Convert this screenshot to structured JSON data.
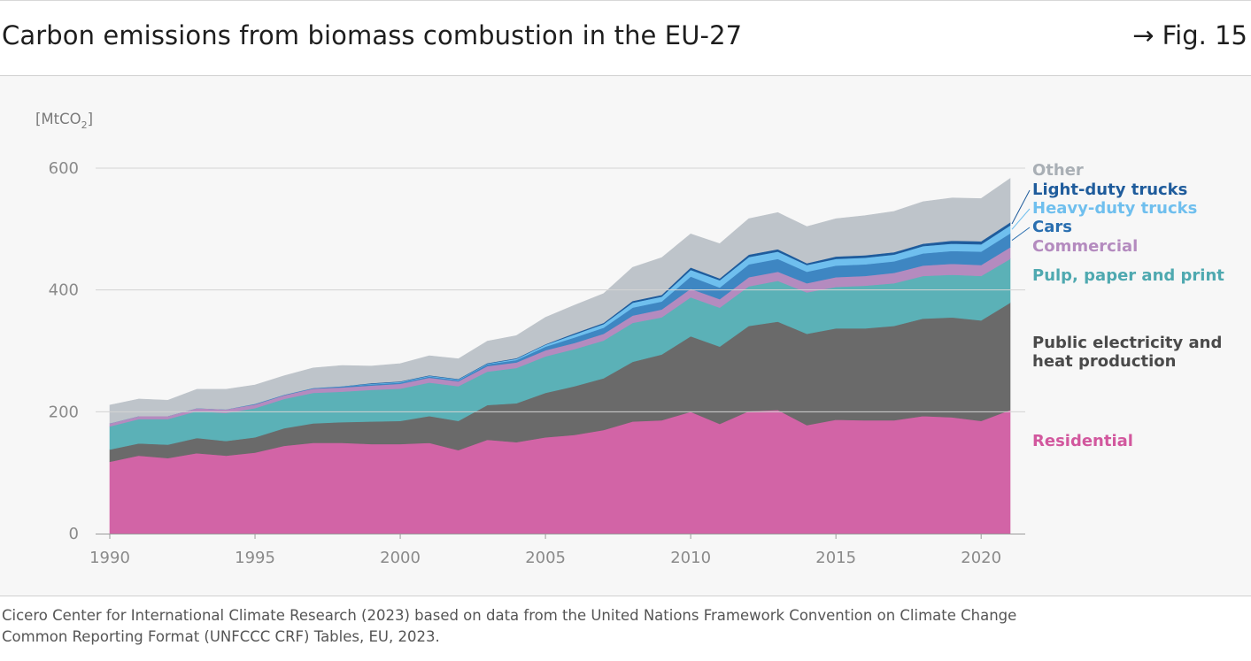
{
  "header": {
    "title": "Carbon emissions from biomass combustion in the EU-27",
    "figure_ref": "→ Fig. 15"
  },
  "source": {
    "line1": "Cicero Center for International Climate Research (2023) based on data from the United Nations Framework Convention on Climate Change",
    "line2": "Common Reporting Format (UNFCCC CRF) Tables, EU, 2023."
  },
  "chart_data": {
    "type": "area",
    "stacked": true,
    "title": "Carbon emissions from biomass combustion in the EU-27",
    "ylabel": "[MtCO2]",
    "ylabel_main": "[MtCO",
    "ylabel_sub": "2",
    "ylabel_end": "]",
    "ylim": [
      0,
      620
    ],
    "y_ticks": [
      0,
      200,
      400,
      600
    ],
    "x_ticks": [
      1990,
      1995,
      2000,
      2005,
      2010,
      2015,
      2020
    ],
    "grid": "horizontal",
    "legend_placement": "right",
    "x": [
      1990,
      1991,
      1992,
      1993,
      1994,
      1995,
      1996,
      1997,
      1998,
      1999,
      2000,
      2001,
      2002,
      2003,
      2004,
      2005,
      2006,
      2007,
      2008,
      2009,
      2010,
      2011,
      2012,
      2013,
      2014,
      2015,
      2016,
      2017,
      2018,
      2019,
      2020,
      2021
    ],
    "series": [
      {
        "name": "Residential",
        "color": "#d264a6",
        "values": [
          118,
          128,
          124,
          132,
          128,
          133,
          144,
          149,
          149,
          147,
          147,
          149,
          137,
          154,
          150,
          158,
          162,
          170,
          184,
          186,
          200,
          180,
          201,
          203,
          178,
          187,
          186,
          186,
          193,
          191,
          185,
          203
        ]
      },
      {
        "name": "Public electricity and heat production",
        "color": "#6a6a6a",
        "values": [
          20,
          20,
          22,
          25,
          24,
          25,
          29,
          32,
          34,
          37,
          38,
          44,
          48,
          57,
          64,
          73,
          80,
          85,
          98,
          108,
          124,
          127,
          140,
          145,
          150,
          150,
          151,
          155,
          160,
          164,
          165,
          176
        ]
      },
      {
        "name": "Pulp, paper and print",
        "color": "#5bb1b7",
        "values": [
          38,
          40,
          42,
          44,
          46,
          48,
          48,
          50,
          50,
          52,
          53,
          55,
          57,
          55,
          58,
          60,
          61,
          62,
          64,
          61,
          64,
          64,
          65,
          67,
          68,
          68,
          70,
          70,
          70,
          70,
          73,
          72
        ]
      },
      {
        "name": "Commercial",
        "color": "#b48bbf",
        "values": [
          5,
          5,
          5,
          5,
          6,
          6,
          6,
          7,
          7,
          7,
          8,
          8,
          8,
          9,
          9,
          10,
          10,
          11,
          12,
          13,
          14,
          14,
          15,
          15,
          15,
          16,
          16,
          17,
          17,
          18,
          18,
          19
        ]
      },
      {
        "name": "Cars",
        "color": "#3e86c2",
        "values": [
          0,
          0,
          0,
          0,
          0,
          1,
          1,
          1,
          2,
          2,
          2,
          2,
          2,
          3,
          4,
          6,
          9,
          10,
          13,
          13,
          20,
          19,
          21,
          21,
          19,
          19,
          19,
          19,
          20,
          21,
          22,
          23
        ]
      },
      {
        "name": "Heavy-duty trucks",
        "color": "#6fbfee",
        "values": [
          0,
          0,
          0,
          0,
          0,
          0,
          0,
          0,
          0,
          1,
          1,
          1,
          1,
          1,
          2,
          3,
          5,
          6,
          8,
          8,
          11,
          12,
          12,
          12,
          11,
          11,
          11,
          11,
          12,
          12,
          12,
          13
        ]
      },
      {
        "name": "Light-duty trucks",
        "color": "#1f5c9c",
        "values": [
          0,
          0,
          0,
          0,
          0,
          0,
          0,
          0,
          0,
          1,
          1,
          1,
          1,
          1,
          1,
          1,
          2,
          2,
          3,
          3,
          4,
          3,
          4,
          4,
          3,
          4,
          4,
          4,
          4,
          5,
          5,
          5
        ]
      },
      {
        "name": "Other",
        "color": "#bec4ca",
        "values": [
          30,
          28,
          26,
          31,
          33,
          31,
          31,
          33,
          34,
          28,
          29,
          32,
          33,
          36,
          37,
          44,
          46,
          48,
          55,
          61,
          55,
          57,
          59,
          60,
          60,
          62,
          65,
          67,
          69,
          70,
          70,
          72
        ]
      }
    ]
  }
}
